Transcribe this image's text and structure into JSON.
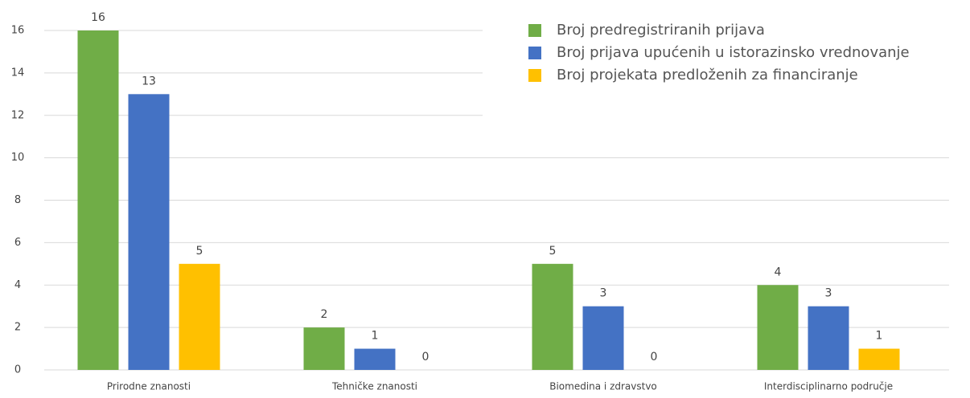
{
  "chart_data": {
    "type": "bar",
    "categories": [
      "Prirodne znanosti",
      "Tehničke znanosti",
      "Biomedina i zdravstvo",
      "Interdisciplinarno područje"
    ],
    "series": [
      {
        "name": "Broj predregistriranih prijava",
        "color": "#70ad47",
        "values": [
          16,
          2,
          5,
          4
        ]
      },
      {
        "name": "Broj prijava upućenih u istorazinsko vrednovanje",
        "color": "#4472c4",
        "values": [
          13,
          1,
          3,
          3
        ]
      },
      {
        "name": "Broj projekata predloženih za financiranje",
        "color": "#ffc000",
        "values": [
          5,
          0,
          0,
          1
        ]
      }
    ],
    "ylim": [
      0,
      16
    ],
    "yticks": [
      0,
      2,
      4,
      6,
      8,
      10,
      12,
      14,
      16
    ],
    "grid": true,
    "legend": "top-right"
  }
}
